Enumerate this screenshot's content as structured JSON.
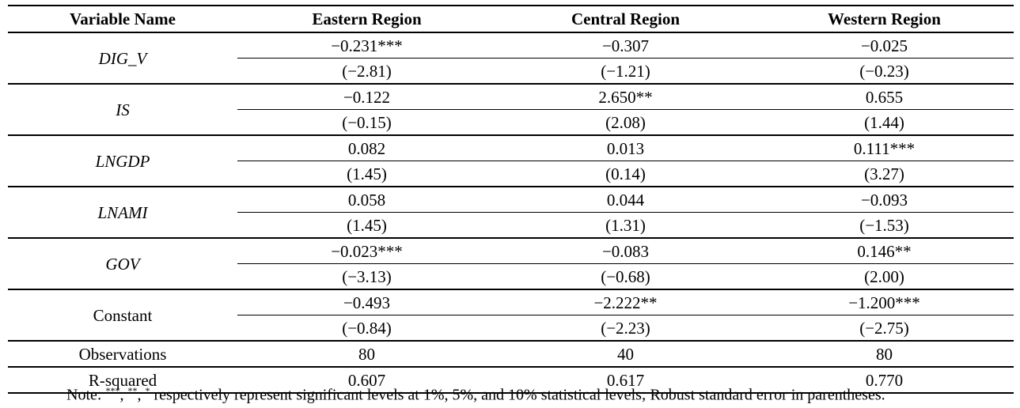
{
  "header": {
    "variable": "Variable Name",
    "col1": "Eastern Region",
    "col2": "Central Region",
    "col3": "Western Region"
  },
  "rows": [
    {
      "name": "DIG_V",
      "italic": true,
      "coef": [
        "−0.231***",
        "−0.307",
        "−0.025"
      ],
      "se": [
        "(−2.81)",
        "(−1.21)",
        "(−0.23)"
      ]
    },
    {
      "name": "IS",
      "italic": true,
      "coef": [
        "−0.122",
        "2.650**",
        "0.655"
      ],
      "se": [
        "(−0.15)",
        "(2.08)",
        "(1.44)"
      ]
    },
    {
      "name": "LNGDP",
      "italic": true,
      "coef": [
        "0.082",
        "0.013",
        "0.111***"
      ],
      "se": [
        "(1.45)",
        "(0.14)",
        "(3.27)"
      ]
    },
    {
      "name": "LNAMI",
      "italic": true,
      "coef": [
        "0.058",
        "0.044",
        "−0.093"
      ],
      "se": [
        "(1.45)",
        "(1.31)",
        "(−1.53)"
      ]
    },
    {
      "name": "GOV",
      "italic": true,
      "coef": [
        "−0.023***",
        "−0.083",
        "0.146**"
      ],
      "se": [
        "(−3.13)",
        "(−0.68)",
        "(2.00)"
      ]
    },
    {
      "name": "Constant",
      "italic": false,
      "coef": [
        "−0.493",
        "−2.222**",
        "−1.200***"
      ],
      "se": [
        "(−0.84)",
        "(−2.23)",
        "(−2.75)"
      ]
    }
  ],
  "stats": [
    {
      "name": "Observations",
      "values": [
        "80",
        "40",
        "80"
      ]
    },
    {
      "name": "R-squared",
      "values": [
        "0.607",
        "0.617",
        "0.770"
      ]
    }
  ],
  "note": {
    "prefix": "Note: ",
    "sup1": "***",
    "sep1": ", ",
    "sup2": "**",
    "sep2": ", ",
    "sup3": "*",
    "text": " respectively represent significant levels at 1%, 5%, and 10% statistical levels; Robust standard error in parentheses."
  }
}
